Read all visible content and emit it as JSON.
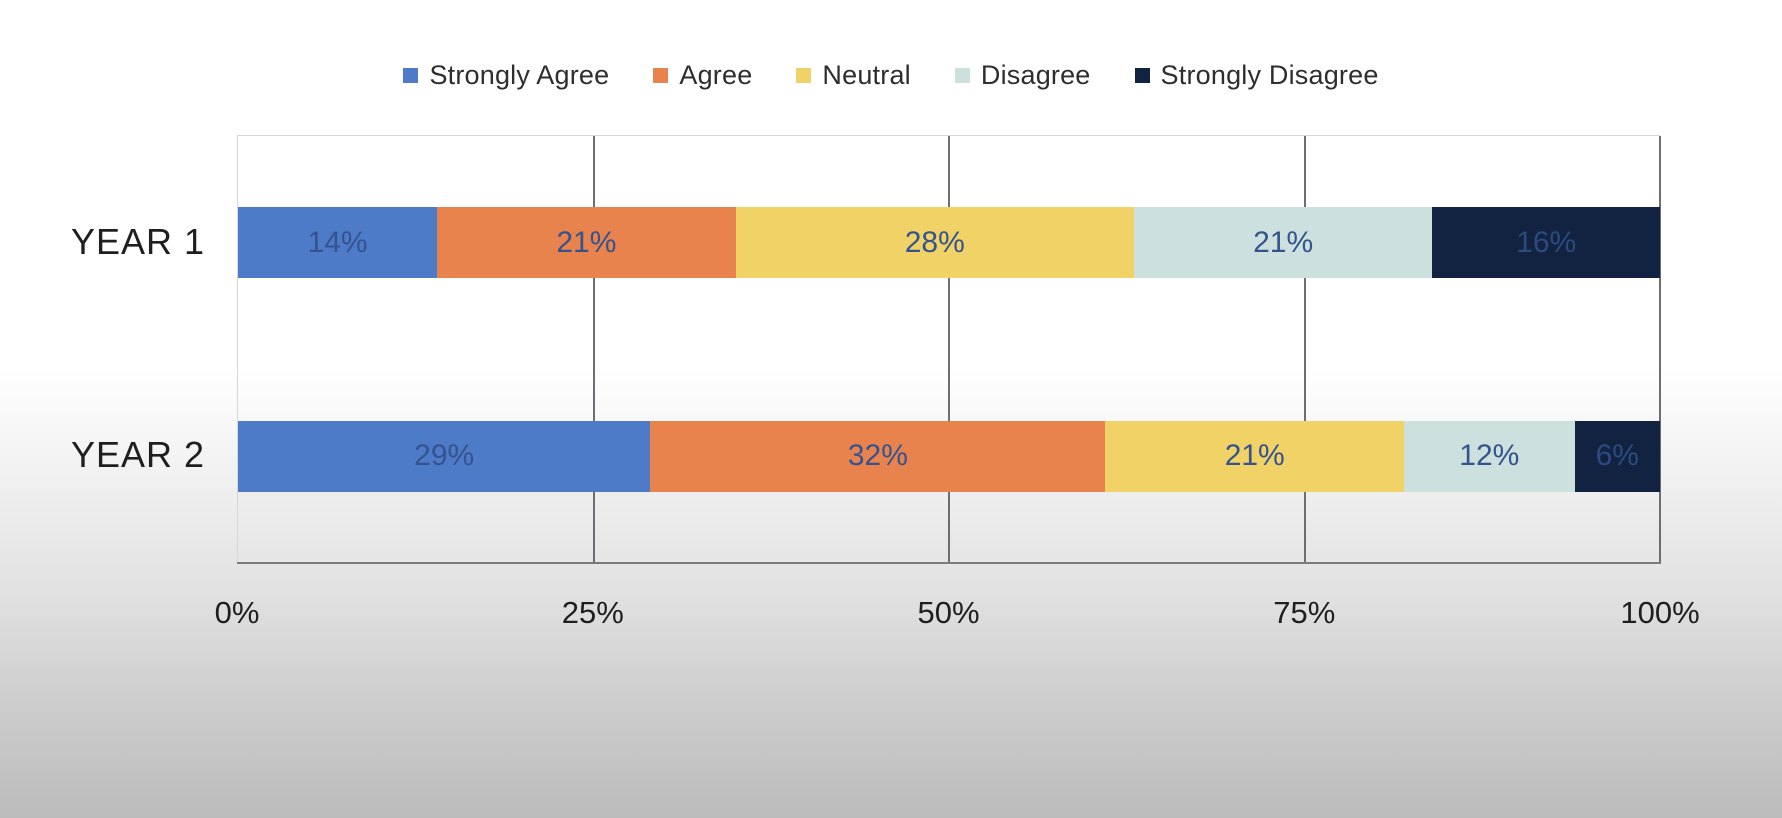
{
  "chart_data": {
    "type": "bar",
    "variant": "horizontal-stacked-100",
    "title": "",
    "categories": [
      "YEAR 1",
      "YEAR 2"
    ],
    "series": [
      {
        "name": "Strongly Agree",
        "color": "#4e7bc8",
        "values": [
          14,
          29
        ]
      },
      {
        "name": "Agree",
        "color": "#e8834e",
        "values": [
          21,
          32
        ]
      },
      {
        "name": "Neutral",
        "color": "#f0d266",
        "values": [
          28,
          21
        ]
      },
      {
        "name": "Disagree",
        "color": "#cce1dd",
        "values": [
          21,
          12
        ]
      },
      {
        "name": "Strongly Disagree",
        "color": "#112340",
        "values": [
          16,
          6
        ]
      }
    ],
    "data_label_suffix": "%",
    "data_label_color": "#35538e",
    "data_label_color_on_dark": "#2c4a80",
    "x_axis": {
      "ticks": [
        "0%",
        "25%",
        "50%",
        "75%",
        "100%"
      ],
      "tick_values": [
        0,
        25,
        50,
        75,
        100
      ],
      "range": [
        0,
        100
      ],
      "gridlines_at": [
        25,
        50,
        75,
        100
      ]
    },
    "legend_position": "top",
    "grid": true
  }
}
